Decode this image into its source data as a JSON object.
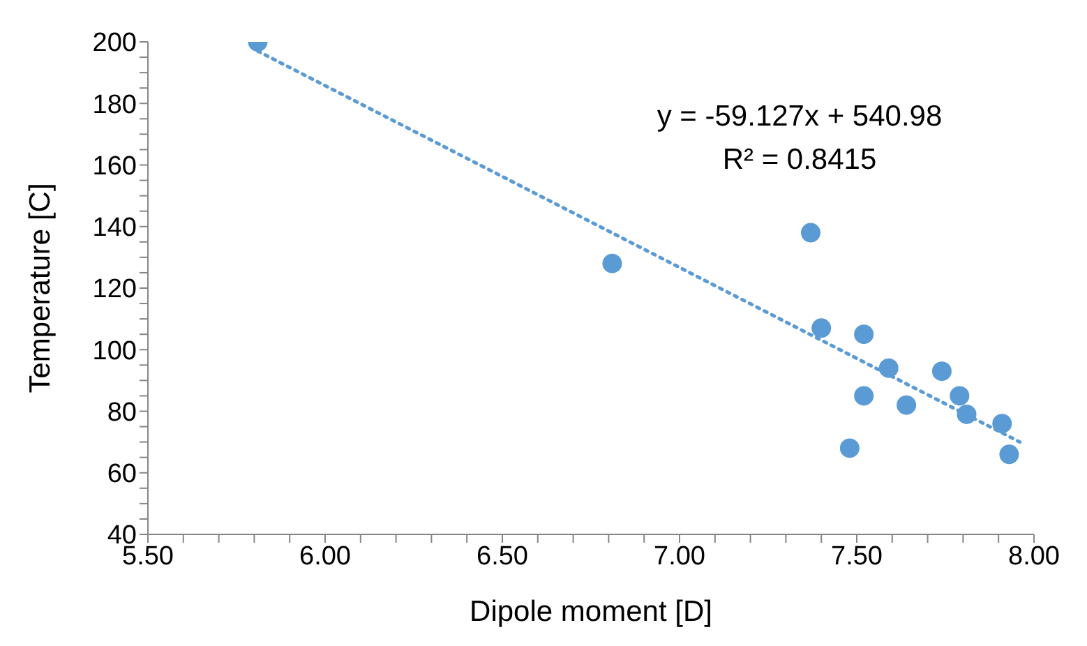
{
  "chart_data": {
    "type": "scatter",
    "xlabel": "Dipole moment [D]",
    "ylabel": "Temperature [C]",
    "annotations": [
      "y = -59.127x + 540.98",
      "R² = 0.8415"
    ],
    "series": [
      {
        "color": "#5b9bd5",
        "x": [
          5.81,
          6.81,
          7.37,
          7.4,
          7.52,
          7.52,
          7.48,
          7.59,
          7.64,
          7.74,
          7.79,
          7.81,
          7.91,
          7.93
        ],
        "values": [
          200,
          128,
          138,
          107,
          105,
          85,
          68,
          94,
          82,
          93,
          85,
          79,
          76,
          66
        ]
      },
      {
        "type": "line",
        "color": "#5b9bd5",
        "line_style": "dotted",
        "marker": "none",
        "x": [
          5.81,
          7.96
        ],
        "values": [
          197,
          70
        ]
      }
    ],
    "xlim": [
      5.5,
      8.0
    ],
    "ylim": [
      40,
      200
    ],
    "xticks": [
      {
        "value": 5.5,
        "label": "5.50"
      },
      {
        "value": 5.6,
        "label": null
      },
      {
        "value": 5.7,
        "label": null
      },
      {
        "value": 5.8,
        "label": null
      },
      {
        "value": 5.9,
        "label": null
      },
      {
        "value": 6.0,
        "label": "6.00"
      },
      {
        "value": 6.1,
        "label": null
      },
      {
        "value": 6.2,
        "label": null
      },
      {
        "value": 6.3,
        "label": null
      },
      {
        "value": 6.4,
        "label": null
      },
      {
        "value": 6.5,
        "label": "6.50"
      },
      {
        "value": 6.6,
        "label": null
      },
      {
        "value": 6.7,
        "label": null
      },
      {
        "value": 6.8,
        "label": null
      },
      {
        "value": 6.9,
        "label": null
      },
      {
        "value": 7.0,
        "label": "7.00"
      },
      {
        "value": 7.1,
        "label": null
      },
      {
        "value": 7.2,
        "label": null
      },
      {
        "value": 7.3,
        "label": null
      },
      {
        "value": 7.4,
        "label": null
      },
      {
        "value": 7.5,
        "label": "7.50"
      },
      {
        "value": 7.6,
        "label": null
      },
      {
        "value": 7.7,
        "label": null
      },
      {
        "value": 7.8,
        "label": null
      },
      {
        "value": 7.9,
        "label": null
      },
      {
        "value": 8.0,
        "label": "8.00"
      }
    ],
    "yticks": [
      40,
      {
        "value": 45,
        "label": null
      },
      {
        "value": 50,
        "label": null
      },
      {
        "value": 55,
        "label": null
      },
      60,
      {
        "value": 65,
        "label": null
      },
      {
        "value": 70,
        "label": null
      },
      {
        "value": 75,
        "label": null
      },
      80,
      {
        "value": 85,
        "label": null
      },
      {
        "value": 90,
        "label": null
      },
      {
        "value": 95,
        "label": null
      },
      100,
      {
        "value": 105,
        "label": null
      },
      {
        "value": 110,
        "label": null
      },
      {
        "value": 115,
        "label": null
      },
      120,
      {
        "value": 125,
        "label": null
      },
      {
        "value": 130,
        "label": null
      },
      {
        "value": 135,
        "label": null
      },
      140,
      {
        "value": 145,
        "label": null
      },
      {
        "value": 150,
        "label": null
      },
      {
        "value": 155,
        "label": null
      },
      160,
      {
        "value": 165,
        "label": null
      },
      {
        "value": 170,
        "label": null
      },
      {
        "value": 175,
        "label": null
      },
      180,
      {
        "value": 185,
        "label": null
      },
      {
        "value": 190,
        "label": null
      },
      {
        "value": 195,
        "label": null
      },
      200
    ],
    "grid": false,
    "legend": false,
    "marker": "circle"
  }
}
